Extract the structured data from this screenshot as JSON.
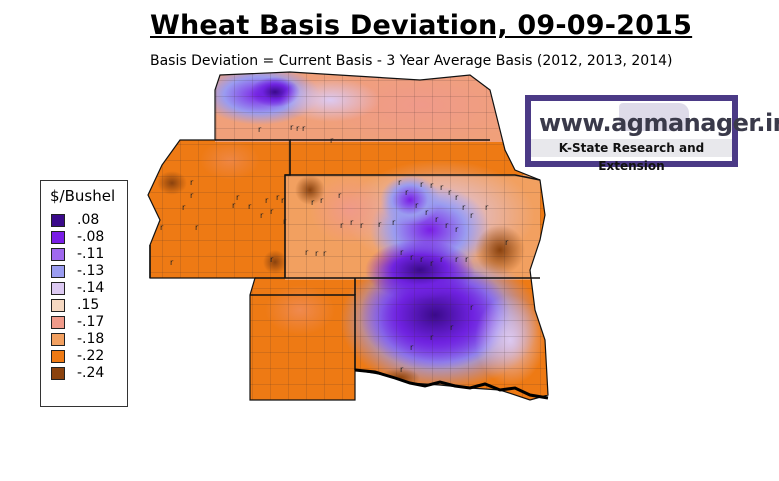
{
  "title": "Wheat Basis Deviation, 09-09-2015",
  "subtitle": "Basis Deviation = Current Basis - 3 Year Average Basis (2012, 2013, 2014)",
  "legend": {
    "title": "$/Bushel",
    "items": [
      {
        "label": ".08",
        "color": "#3a0a8a"
      },
      {
        "label": "-.08",
        "color": "#7a1ee6"
      },
      {
        "label": "-.11",
        "color": "#a069ee"
      },
      {
        "label": "-.13",
        "color": "#9a9cf0"
      },
      {
        "label": "-.14",
        "color": "#dcc9f2"
      },
      {
        "label": ".15",
        "color": "#f6d9c2"
      },
      {
        "label": "-.17",
        "color": "#f09a8a"
      },
      {
        "label": "-.18",
        "color": "#f2a060"
      },
      {
        "label": "-.22",
        "color": "#ee7a14"
      },
      {
        "label": "-.24",
        "color": "#8a420e"
      }
    ]
  },
  "logo": {
    "url_text": "www.agmanager.info",
    "org_text": "K-State Research and Extension"
  },
  "map_marker": "r"
}
